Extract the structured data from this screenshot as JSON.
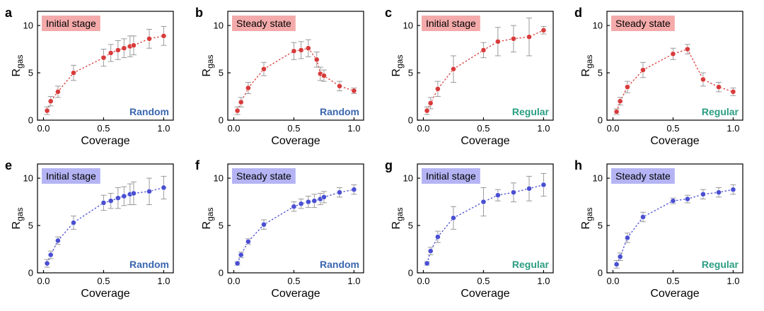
{
  "colors": {
    "red": "#d83b3b",
    "blue": "#4a4fd2",
    "label_red_bg": "#f4aaaa",
    "label_blue_bg": "#b4b4f4",
    "random_text": "#3a66b0",
    "regular_text": "#2a9d82",
    "errorbar": "#9a9a9a"
  },
  "chart_data": [
    {
      "panel": "a",
      "type": "scatter",
      "stage": "Initial stage",
      "pattern": "Random",
      "series_color": "red",
      "xlabel": "Coverage",
      "ylabel": "R",
      "ylabel_sub": "gas",
      "xlim": [
        -0.05,
        1.08
      ],
      "ylim": [
        0,
        11.5
      ],
      "xticks": [
        0.0,
        0.5,
        1.0
      ],
      "xtick_labels": [
        "0.0",
        "0.5",
        "1.0"
      ],
      "yticks": [
        0,
        5,
        10
      ],
      "ytick_labels": [
        "0",
        "5",
        "10"
      ],
      "x": [
        0.03,
        0.06,
        0.12,
        0.25,
        0.5,
        0.56,
        0.62,
        0.67,
        0.72,
        0.75,
        0.88,
        1.0
      ],
      "y": [
        1.0,
        2.0,
        3.0,
        5.0,
        6.6,
        7.1,
        7.4,
        7.6,
        7.8,
        7.9,
        8.6,
        8.9
      ],
      "err": [
        0.4,
        0.5,
        0.6,
        0.8,
        0.9,
        0.9,
        1.0,
        1.0,
        1.1,
        1.0,
        1.0,
        1.0
      ]
    },
    {
      "panel": "b",
      "type": "scatter",
      "stage": "Steady state",
      "pattern": "Random",
      "series_color": "red",
      "xlabel": "Coverage",
      "ylabel": "R",
      "ylabel_sub": "gas",
      "xlim": [
        -0.05,
        1.08
      ],
      "ylim": [
        0,
        11.5
      ],
      "xticks": [
        0.0,
        0.5,
        1.0
      ],
      "xtick_labels": [
        "0.0",
        "0.5",
        "1.0"
      ],
      "yticks": [
        0,
        5,
        10
      ],
      "ytick_labels": [
        "0",
        "5",
        "10"
      ],
      "x": [
        0.03,
        0.06,
        0.12,
        0.25,
        0.5,
        0.56,
        0.62,
        0.69,
        0.72,
        0.75,
        0.88,
        1.0
      ],
      "y": [
        1.0,
        1.9,
        3.4,
        5.4,
        7.3,
        7.4,
        7.6,
        6.4,
        4.9,
        4.7,
        3.6,
        3.1
      ],
      "err": [
        0.4,
        0.5,
        0.6,
        0.7,
        0.9,
        0.9,
        0.9,
        0.8,
        0.7,
        0.6,
        0.5,
        0.3
      ]
    },
    {
      "panel": "c",
      "type": "scatter",
      "stage": "Initial stage",
      "pattern": "Regular",
      "series_color": "red",
      "xlabel": "Coverage",
      "ylabel": "R",
      "ylabel_sub": "gas",
      "xlim": [
        -0.05,
        1.08
      ],
      "ylim": [
        0,
        11.5
      ],
      "xticks": [
        0.0,
        0.5,
        1.0
      ],
      "xtick_labels": [
        "0.0",
        "0.5",
        "1.0"
      ],
      "yticks": [
        0,
        5,
        10
      ],
      "ytick_labels": [
        "0",
        "5",
        "10"
      ],
      "x": [
        0.03,
        0.06,
        0.12,
        0.25,
        0.5,
        0.62,
        0.75,
        0.88,
        1.0
      ],
      "y": [
        1.0,
        1.8,
        3.3,
        5.4,
        7.4,
        8.3,
        8.6,
        8.8,
        9.5
      ],
      "err": [
        0.4,
        0.6,
        0.8,
        1.4,
        0.8,
        1.5,
        1.4,
        2.0,
        0.4
      ]
    },
    {
      "panel": "d",
      "type": "scatter",
      "stage": "Steady state",
      "pattern": "Regular",
      "series_color": "red",
      "xlabel": "Coverage",
      "ylabel": "R",
      "ylabel_sub": "gas",
      "xlim": [
        -0.05,
        1.08
      ],
      "ylim": [
        0,
        11.5
      ],
      "xticks": [
        0.0,
        0.5,
        1.0
      ],
      "xtick_labels": [
        "0.0",
        "0.5",
        "1.0"
      ],
      "yticks": [
        0,
        5,
        10
      ],
      "ytick_labels": [
        "0",
        "5",
        "10"
      ],
      "x": [
        0.03,
        0.06,
        0.12,
        0.25,
        0.5,
        0.62,
        0.75,
        0.88,
        1.0
      ],
      "y": [
        0.9,
        2.0,
        3.5,
        5.3,
        7.0,
        7.5,
        4.3,
        3.5,
        3.0
      ],
      "err": [
        0.3,
        0.4,
        0.6,
        0.8,
        0.6,
        0.5,
        0.7,
        0.5,
        0.4
      ]
    },
    {
      "panel": "e",
      "type": "scatter",
      "stage": "Initial stage",
      "pattern": "Random",
      "series_color": "blue",
      "xlabel": "Coverage",
      "ylabel": "R",
      "ylabel_sub": "gas",
      "xlim": [
        -0.05,
        1.08
      ],
      "ylim": [
        0,
        11.5
      ],
      "xticks": [
        0.0,
        0.5,
        1.0
      ],
      "xtick_labels": [
        "0.0",
        "0.5",
        "1.0"
      ],
      "yticks": [
        0,
        5,
        10
      ],
      "ytick_labels": [
        "0",
        "5",
        "10"
      ],
      "x": [
        0.03,
        0.06,
        0.12,
        0.25,
        0.5,
        0.56,
        0.62,
        0.67,
        0.72,
        0.75,
        0.88,
        1.0
      ],
      "y": [
        1.0,
        1.9,
        3.4,
        5.3,
        7.4,
        7.6,
        7.9,
        8.1,
        8.3,
        8.4,
        8.6,
        9.0
      ],
      "err": [
        0.4,
        0.4,
        0.4,
        0.7,
        0.8,
        0.8,
        1.1,
        1.0,
        1.1,
        1.2,
        1.4,
        1.2
      ]
    },
    {
      "panel": "f",
      "type": "scatter",
      "stage": "Steady state",
      "pattern": "Random",
      "series_color": "blue",
      "xlabel": "Coverage",
      "ylabel": "R",
      "ylabel_sub": "gas",
      "xlim": [
        -0.05,
        1.08
      ],
      "ylim": [
        0,
        11.5
      ],
      "xticks": [
        0.0,
        0.5,
        1.0
      ],
      "xtick_labels": [
        "0.0",
        "0.5",
        "1.0"
      ],
      "yticks": [
        0,
        5,
        10
      ],
      "ytick_labels": [
        "0",
        "5",
        "10"
      ],
      "x": [
        0.03,
        0.06,
        0.12,
        0.25,
        0.5,
        0.56,
        0.62,
        0.67,
        0.72,
        0.75,
        0.88,
        1.0
      ],
      "y": [
        1.0,
        1.9,
        3.3,
        5.1,
        7.0,
        7.3,
        7.5,
        7.6,
        7.8,
        8.0,
        8.5,
        8.8
      ],
      "err": [
        0.2,
        0.3,
        0.3,
        0.5,
        0.5,
        0.5,
        0.6,
        0.7,
        0.6,
        0.6,
        0.5,
        0.5
      ]
    },
    {
      "panel": "g",
      "type": "scatter",
      "stage": "Initial stage",
      "pattern": "Regular",
      "series_color": "blue",
      "xlabel": "Coverage",
      "ylabel": "R",
      "ylabel_sub": "gas",
      "xlim": [
        -0.05,
        1.08
      ],
      "ylim": [
        0,
        11.5
      ],
      "xticks": [
        0.0,
        0.5,
        1.0
      ],
      "xtick_labels": [
        "0.0",
        "0.5",
        "1.0"
      ],
      "yticks": [
        0,
        5,
        10
      ],
      "ytick_labels": [
        "0",
        "5",
        "10"
      ],
      "x": [
        0.03,
        0.06,
        0.12,
        0.25,
        0.5,
        0.62,
        0.75,
        0.88,
        1.0
      ],
      "y": [
        1.0,
        2.3,
        3.8,
        5.8,
        7.5,
        8.2,
        8.5,
        8.9,
        9.3
      ],
      "err": [
        0.2,
        0.4,
        0.6,
        1.2,
        1.5,
        0.6,
        1.0,
        1.3,
        1.2
      ]
    },
    {
      "panel": "h",
      "type": "scatter",
      "stage": "Steady state",
      "pattern": "Regular",
      "series_color": "blue",
      "xlabel": "Coverage",
      "ylabel": "R",
      "ylabel_sub": "gas",
      "xlim": [
        -0.05,
        1.08
      ],
      "ylim": [
        0,
        11.5
      ],
      "xticks": [
        0.0,
        0.5,
        1.0
      ],
      "xtick_labels": [
        "0.0",
        "0.5",
        "1.0"
      ],
      "yticks": [
        0,
        5,
        10
      ],
      "ytick_labels": [
        "0",
        "5",
        "10"
      ],
      "x": [
        0.03,
        0.06,
        0.12,
        0.25,
        0.5,
        0.62,
        0.75,
        0.88,
        1.0
      ],
      "y": [
        0.9,
        1.7,
        3.7,
        5.9,
        7.6,
        7.8,
        8.3,
        8.5,
        8.8
      ],
      "err": [
        0.4,
        0.4,
        0.5,
        0.5,
        0.3,
        0.4,
        0.5,
        0.5,
        0.5
      ]
    }
  ]
}
